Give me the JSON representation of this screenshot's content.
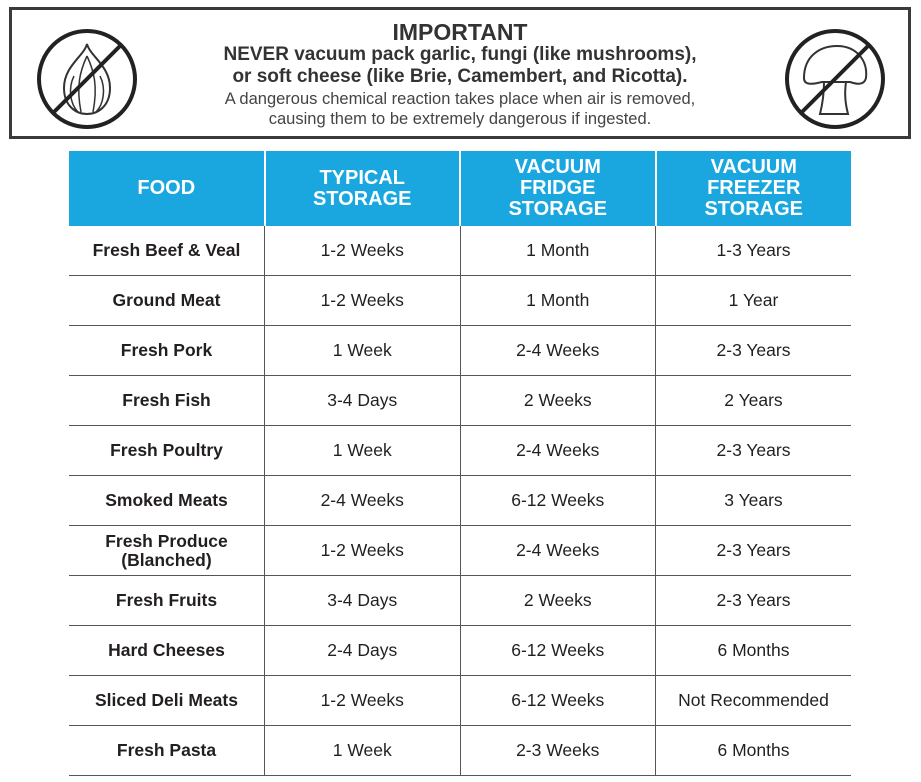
{
  "warning": {
    "title": "IMPORTANT",
    "line1": "NEVER vacuum pack garlic, fungi (like mushrooms),",
    "line2": "or soft cheese (like Brie, Camembert, and Ricotta).",
    "line3": "A dangerous chemical reaction takes place when air is removed,",
    "line4": "causing them to be extremely dangerous if ingested.",
    "left_icon": "no-garlic-icon",
    "right_icon": "no-mushroom-icon"
  },
  "table": {
    "header_color": "#1aa7e0",
    "headers": [
      "FOOD",
      "TYPICAL STORAGE",
      "VACUUM FRIDGE STORAGE",
      "VACUUM FREEZER STORAGE"
    ],
    "rows": [
      [
        "Fresh Beef & Veal",
        "1-2 Weeks",
        "1 Month",
        "1-3 Years"
      ],
      [
        "Ground Meat",
        "1-2 Weeks",
        "1 Month",
        "1 Year"
      ],
      [
        "Fresh Pork",
        "1 Week",
        "2-4 Weeks",
        "2-3 Years"
      ],
      [
        "Fresh Fish",
        "3-4 Days",
        "2 Weeks",
        "2 Years"
      ],
      [
        "Fresh Poultry",
        "1 Week",
        "2-4 Weeks",
        "2-3 Years"
      ],
      [
        "Smoked Meats",
        "2-4 Weeks",
        "6-12 Weeks",
        "3 Years"
      ],
      [
        "Fresh Produce (Blanched)",
        "1-2 Weeks",
        "2-4 Weeks",
        "2-3 Years"
      ],
      [
        "Fresh Fruits",
        "3-4 Days",
        "2 Weeks",
        "2-3 Years"
      ],
      [
        "Hard Cheeses",
        "2-4 Days",
        "6-12 Weeks",
        "6 Months"
      ],
      [
        "Sliced Deli Meats",
        "1-2 Weeks",
        "6-12 Weeks",
        "Not Recommended"
      ],
      [
        "Fresh Pasta",
        "1 Week",
        "2-3 Weeks",
        "6 Months"
      ]
    ]
  }
}
